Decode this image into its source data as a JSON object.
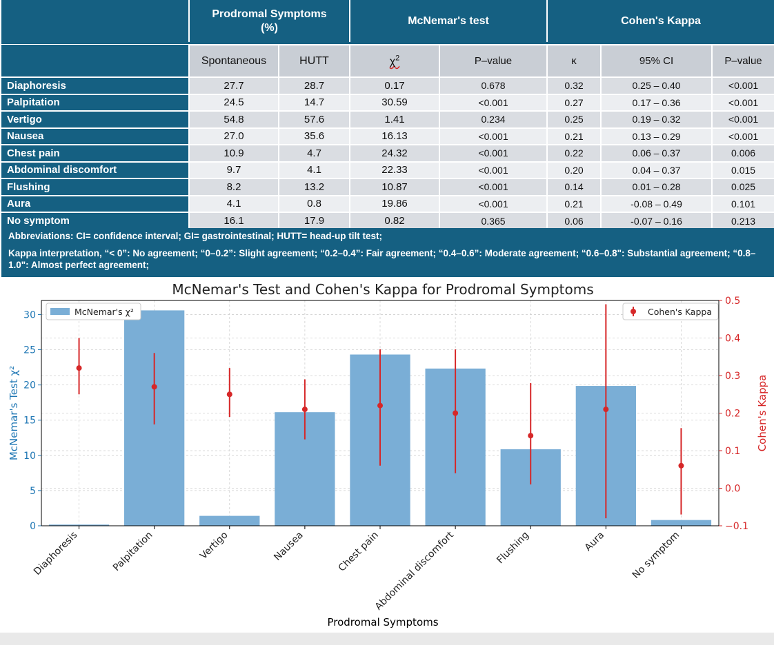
{
  "table": {
    "groups": [
      {
        "label": "Prodromal Symptoms\n(%)"
      },
      {
        "label": "McNemar's test"
      },
      {
        "label": "Cohen's Kappa"
      }
    ],
    "columns": [
      "Spontaneous",
      "HUTT",
      "χ2",
      "P–value",
      "κ",
      "95% CI",
      "P–value"
    ],
    "rows": [
      {
        "name": "Diaphoresis",
        "spont": "27.7",
        "hutt": "28.7",
        "chi2": "0.17",
        "p_mcnemar": "0.678",
        "kappa": "0.32",
        "ci": "0.25 – 0.40",
        "p_kappa": "<0.001"
      },
      {
        "name": "Palpitation",
        "spont": "24.5",
        "hutt": "14.7",
        "chi2": "30.59",
        "p_mcnemar": "<0.001",
        "kappa": "0.27",
        "ci": "0.17 – 0.36",
        "p_kappa": "<0.001"
      },
      {
        "name": "Vertigo",
        "spont": "54.8",
        "hutt": "57.6",
        "chi2": "1.41",
        "p_mcnemar": "0.234",
        "kappa": "0.25",
        "ci": "0.19 – 0.32",
        "p_kappa": "<0.001"
      },
      {
        "name": "Nausea",
        "spont": "27.0",
        "hutt": "35.6",
        "chi2": "16.13",
        "p_mcnemar": "<0.001",
        "kappa": "0.21",
        "ci": "0.13 – 0.29",
        "p_kappa": "<0.001"
      },
      {
        "name": "Chest pain",
        "spont": "10.9",
        "hutt": "4.7",
        "chi2": "24.32",
        "p_mcnemar": "<0.001",
        "kappa": "0.22",
        "ci": "0.06 – 0.37",
        "p_kappa": "0.006"
      },
      {
        "name": "Abdominal discomfort",
        "spont": "9.7",
        "hutt": "4.1",
        "chi2": "22.33",
        "p_mcnemar": "<0.001",
        "kappa": "0.20",
        "ci": "0.04 – 0.37",
        "p_kappa": "0.015"
      },
      {
        "name": "Flushing",
        "spont": "8.2",
        "hutt": "13.2",
        "chi2": "10.87",
        "p_mcnemar": "<0.001",
        "kappa": "0.14",
        "ci": "0.01 – 0.28",
        "p_kappa": "0.025"
      },
      {
        "name": "Aura",
        "spont": "4.1",
        "hutt": "0.8",
        "chi2": "19.86",
        "p_mcnemar": "<0.001",
        "kappa": "0.21",
        "ci": "-0.08 – 0.49",
        "p_kappa": "0.101"
      },
      {
        "name": "No symptom",
        "spont": "16.1",
        "hutt": "17.9",
        "chi2": "0.82",
        "p_mcnemar": "0.365",
        "kappa": "0.06",
        "ci": "-0.07 – 0.16",
        "p_kappa": "0.213"
      }
    ],
    "abbreviations": "Abbreviations: CI= confidence interval; GI= gastrointestinal; HUTT= head-up tilt test;",
    "kappa_note": "Kappa interpretation, “< 0”: No agreement; “0–0.2”: Slight agreement; “0.2–0.4”: Fair agreement; “0.4–0.6”: Moderate agreement; “0.6–0.8\": Substantial agreement; “0.8–1.0\": Almost perfect agreement;"
  },
  "chart_data": {
    "type": "bar",
    "title": "McNemar's Test and Cohen's Kappa for Prodromal Symptoms",
    "xlabel": "Prodromal Symptoms",
    "ylabel": "McNemar's Test χ²",
    "y2label": "Cohen's Kappa",
    "categories": [
      "Diaphoresis",
      "Palpitation",
      "Vertigo",
      "Nausea",
      "Chest pain",
      "Abdominal discomfort",
      "Flushing",
      "Aura",
      "No symptom"
    ],
    "series": [
      {
        "name": "McNemar's χ²",
        "axis": "left",
        "kind": "bar",
        "values": [
          0.17,
          30.59,
          1.41,
          16.13,
          24.32,
          22.33,
          10.87,
          19.86,
          0.82
        ]
      },
      {
        "name": "Cohen's Kappa",
        "axis": "right",
        "kind": "errorbar",
        "values": [
          0.32,
          0.27,
          0.25,
          0.21,
          0.22,
          0.2,
          0.14,
          0.21,
          0.06
        ],
        "lower": [
          0.25,
          0.17,
          0.19,
          0.13,
          0.06,
          0.04,
          0.01,
          -0.08,
          -0.07
        ],
        "upper": [
          0.4,
          0.36,
          0.32,
          0.29,
          0.37,
          0.37,
          0.28,
          0.49,
          0.16
        ]
      }
    ],
    "ylim": [
      0,
      32
    ],
    "y2lim": [
      -0.1,
      0.5
    ],
    "yticks": [
      0,
      5,
      10,
      15,
      20,
      25,
      30
    ],
    "y2ticks": [
      -0.1,
      0.0,
      0.1,
      0.2,
      0.3,
      0.4,
      0.5
    ],
    "legend_left": "top-left",
    "legend_right": "top-right",
    "grid": true,
    "colors": {
      "bar": "#7aaed6",
      "kappa": "#d62728",
      "left_axis": "#1f77b4",
      "right_axis": "#d62728"
    }
  }
}
